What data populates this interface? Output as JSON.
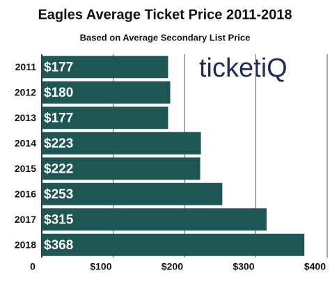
{
  "chart_data": {
    "type": "hbar",
    "title": "Eagles Average Ticket Price 2011-2018",
    "subtitle": "Based on Average Secondary List Price",
    "logo": "ticketiQ",
    "categories": [
      "2011",
      "2012",
      "2013",
      "2014",
      "2015",
      "2016",
      "2017",
      "2018"
    ],
    "values": [
      177,
      180,
      177,
      223,
      222,
      253,
      315,
      368
    ],
    "value_labels": [
      "$177",
      "$180",
      "$177",
      "$223",
      "$222",
      "$253",
      "$315",
      "$368"
    ],
    "color": "#1d5652",
    "xlim": [
      0,
      400
    ],
    "xticks": [
      0,
      {
        "value": 100,
        "label": "$100"
      },
      {
        "value": 200,
        "label": "$200"
      },
      {
        "value": 300,
        "label": "$300"
      },
      {
        "value": 400,
        "label": "$400"
      }
    ],
    "grid": true
  }
}
